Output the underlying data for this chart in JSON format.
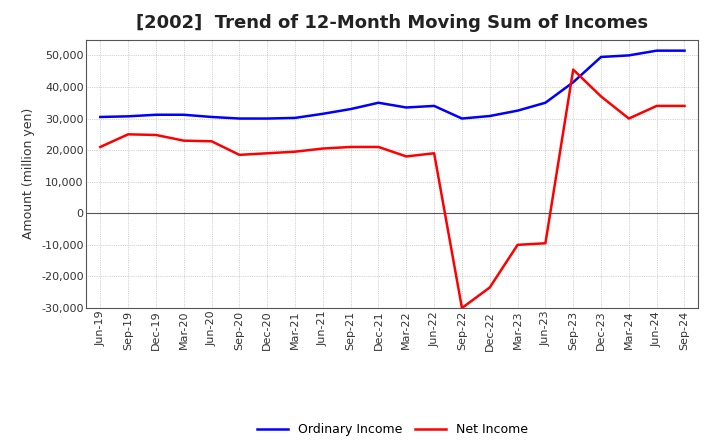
{
  "title": "[2002]  Trend of 12-Month Moving Sum of Incomes",
  "ylabel": "Amount (million yen)",
  "ylim": [
    -30000,
    55000
  ],
  "yticks": [
    -30000,
    -20000,
    -10000,
    0,
    10000,
    20000,
    30000,
    40000,
    50000
  ],
  "background_color": "#ffffff",
  "plot_background": "#ffffff",
  "x_labels": [
    "Jun-19",
    "Sep-19",
    "Dec-19",
    "Mar-20",
    "Jun-20",
    "Sep-20",
    "Dec-20",
    "Mar-21",
    "Jun-21",
    "Sep-21",
    "Dec-21",
    "Mar-22",
    "Jun-22",
    "Sep-22",
    "Dec-22",
    "Mar-23",
    "Jun-23",
    "Sep-23",
    "Dec-23",
    "Mar-24",
    "Jun-24",
    "Sep-24"
  ],
  "ordinary_income": [
    30500,
    30700,
    31200,
    31200,
    30500,
    30000,
    30000,
    30200,
    31500,
    33000,
    35000,
    33500,
    34000,
    30000,
    30800,
    32500,
    35000,
    41500,
    49500,
    50000,
    51500,
    51500
  ],
  "net_income": [
    21000,
    25000,
    24800,
    23000,
    22800,
    18500,
    19000,
    19500,
    20500,
    21000,
    21000,
    18000,
    19000,
    -30000,
    -23500,
    -10000,
    -9500,
    45500,
    37000,
    30000,
    34000,
    34000
  ],
  "ordinary_color": "#0000ff",
  "net_color": "#ff0000",
  "line_width": 1.8,
  "title_fontsize": 13,
  "axis_fontsize": 9,
  "tick_fontsize": 8,
  "legend_fontsize": 9
}
